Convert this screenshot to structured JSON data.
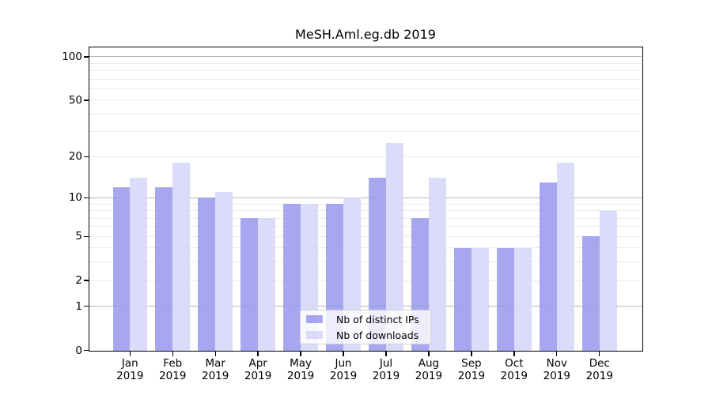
{
  "header": {
    "title": "MeSH.Aml.eg.db 2019"
  },
  "chart_data": {
    "type": "bar",
    "title": "MeSH.Aml.eg.db 2019",
    "categories": [
      {
        "month": "Jan",
        "year": "2019"
      },
      {
        "month": "Feb",
        "year": "2019"
      },
      {
        "month": "Mar",
        "year": "2019"
      },
      {
        "month": "Apr",
        "year": "2019"
      },
      {
        "month": "May",
        "year": "2019"
      },
      {
        "month": "Jun",
        "year": "2019"
      },
      {
        "month": "Jul",
        "year": "2019"
      },
      {
        "month": "Aug",
        "year": "2019"
      },
      {
        "month": "Sep",
        "year": "2019"
      },
      {
        "month": "Oct",
        "year": "2019"
      },
      {
        "month": "Nov",
        "year": "2019"
      },
      {
        "month": "Dec",
        "year": "2019"
      }
    ],
    "series": [
      {
        "name": "Nb of distinct IPs",
        "color": "#9a9aee",
        "values": [
          12,
          12,
          10,
          7,
          9,
          9,
          14,
          7,
          4,
          4,
          13,
          5
        ]
      },
      {
        "name": "Nb of downloads",
        "color": "#d6d6f9",
        "values": [
          14,
          18,
          11,
          7,
          9,
          10,
          25,
          14,
          4,
          4,
          18,
          8
        ]
      }
    ],
    "xlabel": "",
    "ylabel": "",
    "y_scale": "log1p",
    "ylim": [
      0,
      116
    ],
    "y_ticks": [
      0,
      1,
      2,
      5,
      10,
      20,
      50,
      100
    ],
    "y_gridlines_major": [
      1,
      10,
      100
    ],
    "y_gridlines_minor": [
      2,
      3,
      4,
      5,
      6,
      7,
      8,
      9,
      20,
      30,
      40,
      50,
      60,
      70,
      80,
      90
    ],
    "grid": "on",
    "legend_position": "inside-bottom-center"
  }
}
